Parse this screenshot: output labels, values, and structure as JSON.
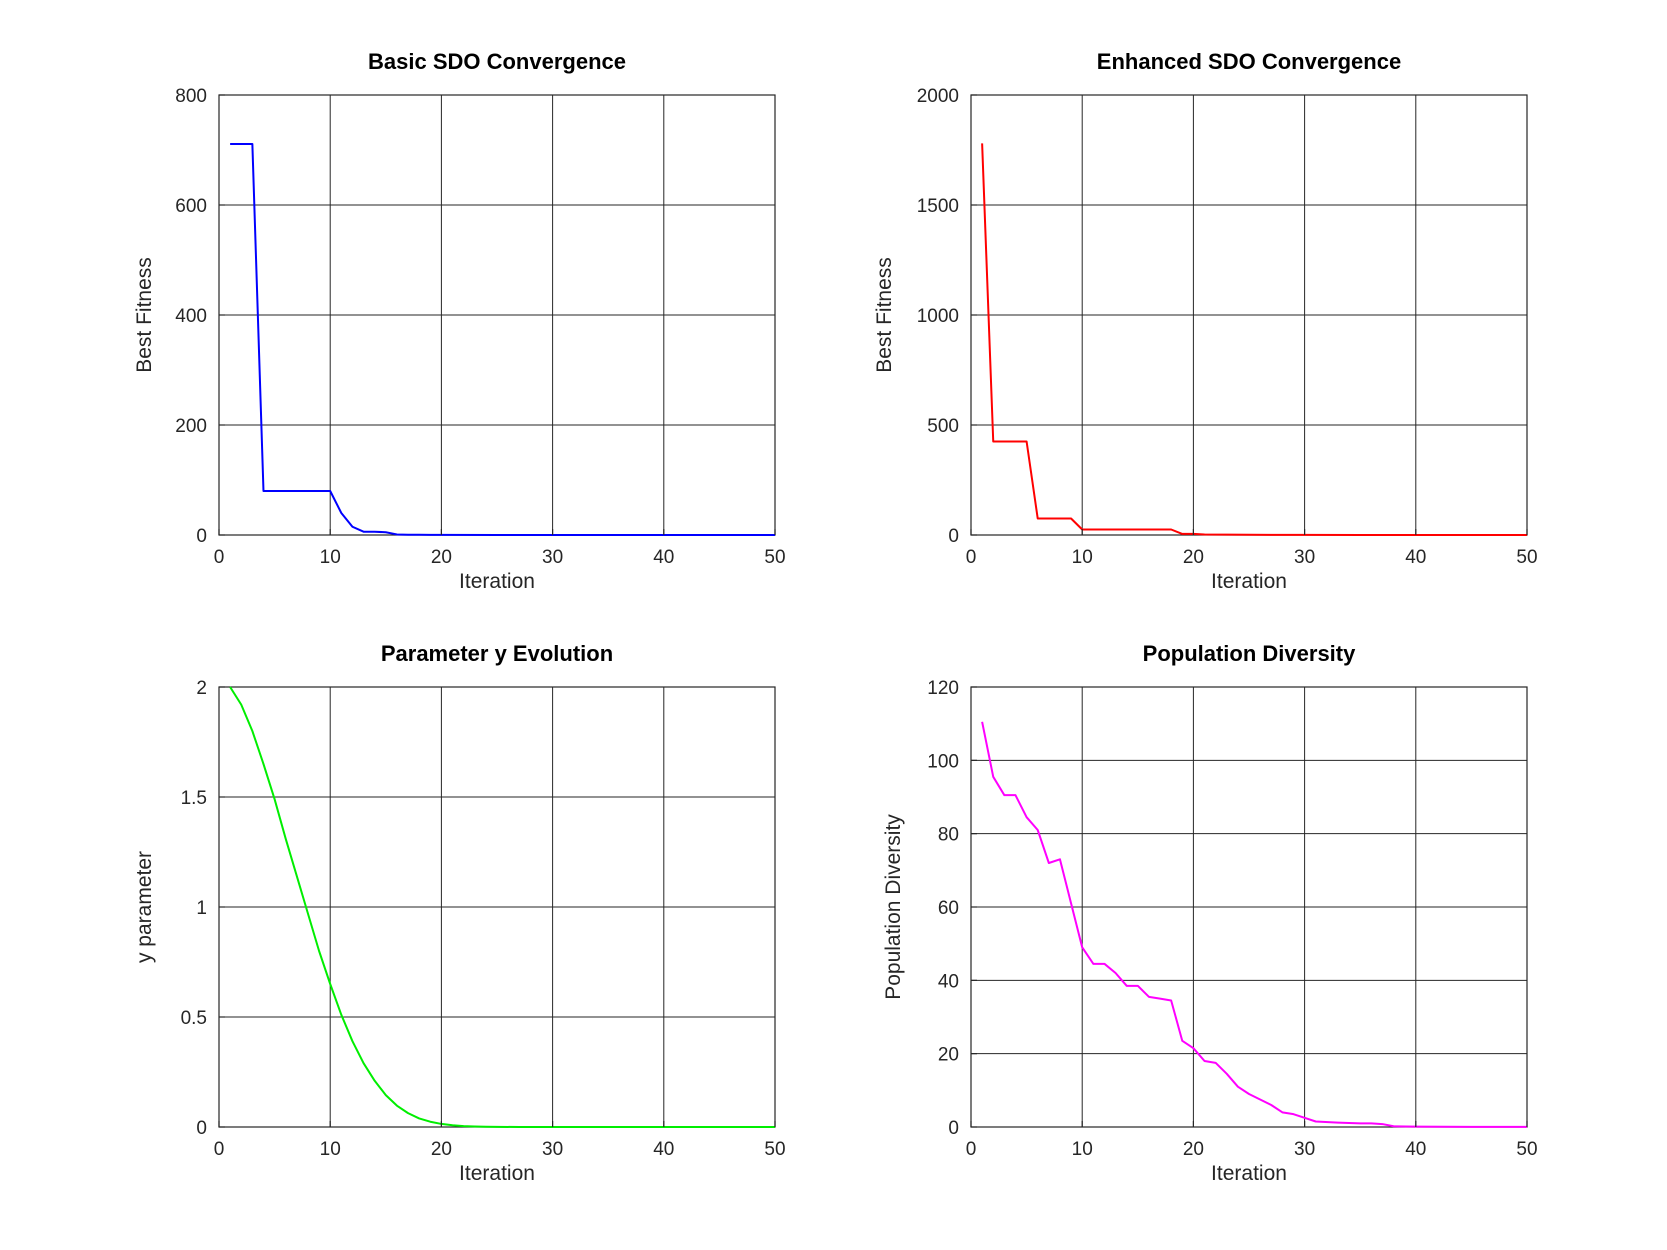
{
  "chart_data": [
    {
      "type": "line",
      "title": "Basic SDO Convergence",
      "xlabel": "Iteration",
      "ylabel": "Best Fitness",
      "xlim": [
        0,
        50
      ],
      "ylim": [
        0,
        800
      ],
      "xticks": [
        0,
        10,
        20,
        30,
        40,
        50
      ],
      "yticks": [
        0,
        200,
        400,
        600,
        800
      ],
      "grid": true,
      "color": "#0000ff",
      "series": [
        {
          "x": [
            1,
            2,
            3,
            4,
            5,
            6,
            7,
            8,
            9,
            10,
            11,
            12,
            13,
            14,
            15,
            16,
            17,
            18,
            19,
            20,
            25,
            30,
            35,
            40,
            45,
            50
          ],
          "y": [
            711,
            711,
            711,
            80,
            80,
            80,
            80,
            80,
            80,
            80,
            40,
            15,
            6,
            6,
            5,
            1,
            0.5,
            0.5,
            0.3,
            0.2,
            0.1,
            0.05,
            0.02,
            0.01,
            0.01,
            0.01
          ]
        }
      ]
    },
    {
      "type": "line",
      "title": "Enhanced SDO Convergence",
      "xlabel": "Iteration",
      "ylabel": "Best Fitness",
      "xlim": [
        0,
        50
      ],
      "ylim": [
        0,
        2000
      ],
      "xticks": [
        0,
        10,
        20,
        30,
        40,
        50
      ],
      "yticks": [
        0,
        500,
        1000,
        1500,
        2000
      ],
      "grid": true,
      "color": "#ff0000",
      "series": [
        {
          "x": [
            1,
            2,
            3,
            4,
            5,
            6,
            7,
            8,
            9,
            10,
            11,
            12,
            13,
            14,
            15,
            16,
            17,
            18,
            19,
            20,
            21,
            25,
            30,
            35,
            40,
            45,
            50
          ],
          "y": [
            1780,
            425,
            425,
            425,
            425,
            75,
            75,
            75,
            75,
            25,
            25,
            25,
            25,
            25,
            25,
            25,
            25,
            25,
            5,
            5,
            2,
            1,
            0.5,
            0.2,
            0.1,
            0.1,
            0.1
          ]
        }
      ]
    },
    {
      "type": "line",
      "title": "Parameter y Evolution",
      "xlabel": "Iteration",
      "ylabel": "y parameter",
      "xlim": [
        0,
        50
      ],
      "ylim": [
        0,
        2
      ],
      "xticks": [
        0,
        10,
        20,
        30,
        40,
        50
      ],
      "yticks": [
        0,
        0.5,
        1,
        1.5,
        2
      ],
      "ytick_labels": [
        "0",
        "0.5",
        "1",
        "1.5",
        "2"
      ],
      "grid": true,
      "color": "#00ee00",
      "series": [
        {
          "x": [
            1,
            2,
            3,
            4,
            5,
            6,
            7,
            8,
            9,
            10,
            11,
            12,
            13,
            14,
            15,
            16,
            17,
            18,
            19,
            20,
            21,
            22,
            23,
            24,
            25,
            27,
            30,
            35,
            40,
            45,
            50
          ],
          "y": [
            2.0,
            1.92,
            1.8,
            1.65,
            1.49,
            1.31,
            1.14,
            0.97,
            0.8,
            0.65,
            0.51,
            0.39,
            0.29,
            0.21,
            0.145,
            0.097,
            0.063,
            0.039,
            0.024,
            0.014,
            0.008,
            0.004,
            0.002,
            0.001,
            0.0005,
            0.0001,
            0.0,
            0.0,
            0.0,
            0.0,
            0.0
          ]
        }
      ]
    },
    {
      "type": "line",
      "title": "Population Diversity",
      "xlabel": "Iteration",
      "ylabel": "Population Diversity",
      "xlim": [
        0,
        50
      ],
      "ylim": [
        0,
        120
      ],
      "xticks": [
        0,
        10,
        20,
        30,
        40,
        50
      ],
      "yticks": [
        0,
        20,
        40,
        60,
        80,
        100,
        120
      ],
      "grid": true,
      "color": "#ff00ff",
      "series": [
        {
          "x": [
            1,
            2,
            3,
            4,
            5,
            6,
            7,
            8,
            9,
            10,
            11,
            12,
            13,
            14,
            15,
            16,
            17,
            18,
            19,
            20,
            21,
            22,
            23,
            24,
            25,
            26,
            27,
            28,
            29,
            30,
            31,
            33,
            35,
            36,
            37,
            38,
            40,
            45,
            50
          ],
          "y": [
            110.5,
            95.5,
            90.5,
            90.5,
            84.5,
            81,
            72,
            73,
            61,
            49,
            44.5,
            44.5,
            42,
            38.5,
            38.5,
            35.5,
            35,
            34.5,
            23.5,
            21.5,
            18,
            17.5,
            14.5,
            11,
            9,
            7.5,
            6,
            4,
            3.5,
            2.5,
            1.5,
            1.2,
            1,
            1,
            0.8,
            0.2,
            0.1,
            0.05,
            0.05
          ]
        }
      ]
    }
  ]
}
